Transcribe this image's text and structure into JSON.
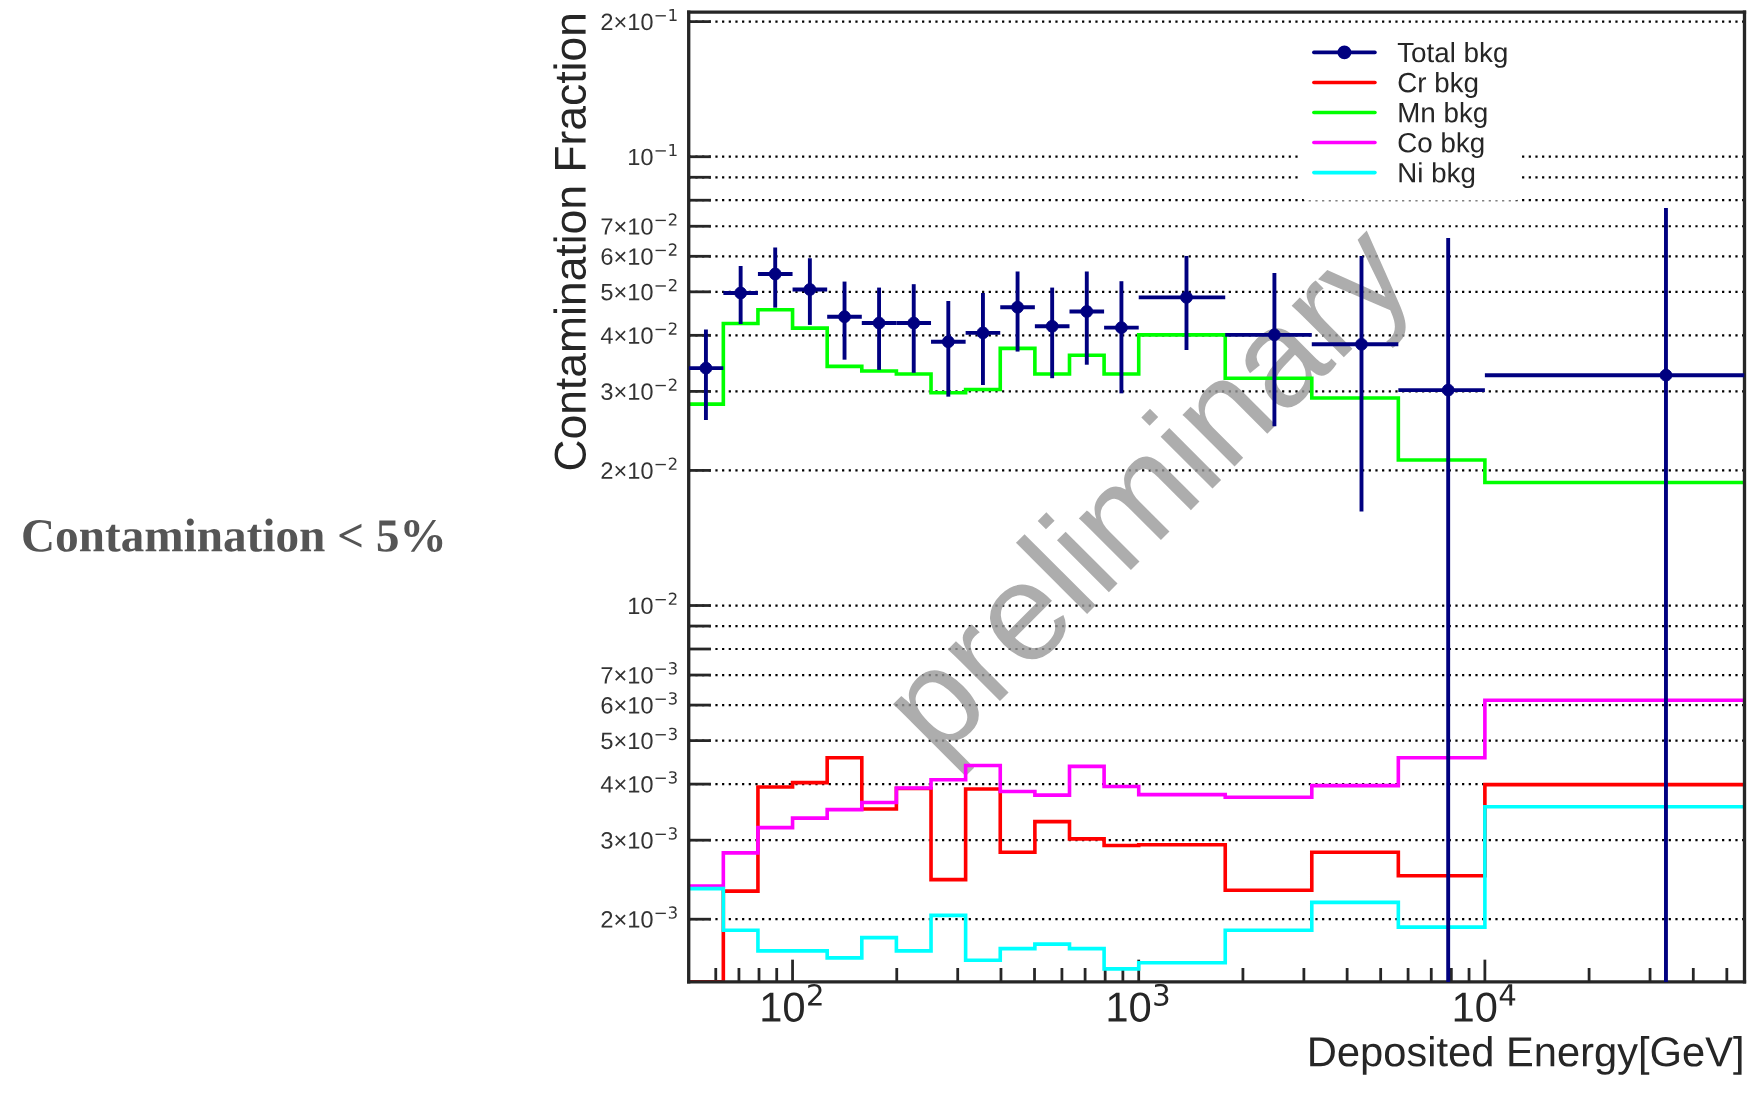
{
  "chart_data": {
    "type": "histogram",
    "xlabel": "Deposited Energy[GeV]",
    "ylabel": "Contamination Fraction",
    "annotations": [
      "Contamination < 5%",
      "preliminary"
    ],
    "bins": [
      50.12,
      63.1,
      79.43,
      100,
      125.9,
      158.5,
      199.5,
      251.2,
      316.2,
      398.1,
      501.2,
      631,
      794.3,
      1000,
      1778,
      3162,
      5623,
      10000,
      56234
    ],
    "series": [
      {
        "name": "Total bkg",
        "type": "scatter",
        "color": "#000080",
        "marker": "circle",
        "x": [
          56.2,
          70.8,
          89.1,
          112.2,
          141.3,
          177.8,
          223.9,
          281.8,
          354.8,
          446.7,
          562.3,
          707.9,
          891.3,
          1374,
          2466,
          4401,
          7834,
          33350
        ],
        "values": [
          0.0338,
          0.0497,
          0.0548,
          0.0506,
          0.044,
          0.0426,
          0.0426,
          0.0387,
          0.0405,
          0.0462,
          0.0419,
          0.0452,
          0.0416,
          0.0486,
          0.0401,
          0.0382,
          0.0302,
          0.0326
        ],
        "errors": [
          [
            0.0259,
            0.0412
          ],
          [
            0.0424,
            0.0571
          ],
          [
            0.0461,
            0.0628
          ],
          [
            0.0422,
            0.0594
          ],
          [
            0.0353,
            0.0527
          ],
          [
            0.0335,
            0.0511
          ],
          [
            0.033,
            0.052
          ],
          [
            0.0292,
            0.0477
          ],
          [
            0.031,
            0.0497
          ],
          [
            0.0368,
            0.0555
          ],
          [
            0.0321,
            0.0511
          ],
          [
            0.0344,
            0.0555
          ],
          [
            0.0297,
            0.0528
          ],
          [
            0.0371,
            0.0601
          ],
          [
            0.0251,
            0.0551
          ],
          [
            0.0162,
            0.0601
          ],
          [
            0.00145,
            0.0659
          ],
          [
            0.00145,
            0.0769
          ]
        ],
        "xerrors": [
          [
            50.12,
            63.1
          ],
          [
            63.1,
            79.43
          ],
          [
            79.43,
            100
          ],
          [
            100,
            125.9
          ],
          [
            125.9,
            158.5
          ],
          [
            158.5,
            199.5
          ],
          [
            199.5,
            251.2
          ],
          [
            251.2,
            316.2
          ],
          [
            316.2,
            398.1
          ],
          [
            398.1,
            501.2
          ],
          [
            501.2,
            631
          ],
          [
            631,
            794.3
          ],
          [
            794.3,
            1000
          ],
          [
            1000,
            1778
          ],
          [
            1778,
            3162
          ],
          [
            3162,
            5623
          ],
          [
            5623,
            10000
          ],
          [
            10000,
            56234
          ]
        ]
      },
      {
        "name": "Cr bkg",
        "color": "#ff0000",
        "values": [
          0.00145,
          0.00231,
          0.00394,
          0.00403,
          0.00458,
          0.00352,
          0.00391,
          0.00245,
          0.0039,
          0.00282,
          0.0033,
          0.00302,
          0.00292,
          0.00293,
          0.00232,
          0.00282,
          0.0025,
          0.00399
        ]
      },
      {
        "name": "Mn bkg",
        "color": "#00ff00",
        "values": [
          0.0281,
          0.0425,
          0.0456,
          0.0415,
          0.0341,
          0.0333,
          0.0328,
          0.0298,
          0.0303,
          0.0374,
          0.0328,
          0.0361,
          0.0328,
          0.0401,
          0.0321,
          0.029,
          0.0211,
          0.0188
        ]
      },
      {
        "name": "Co bkg",
        "color": "#ff00ff",
        "values": [
          0.00237,
          0.00281,
          0.0032,
          0.00336,
          0.00351,
          0.00364,
          0.00392,
          0.00409,
          0.0044,
          0.00385,
          0.00378,
          0.00438,
          0.00395,
          0.00379,
          0.00374,
          0.00397,
          0.00458,
          0.00615
        ]
      },
      {
        "name": "Ni bkg",
        "color": "#00ffff",
        "values": [
          0.00234,
          0.00189,
          0.0017,
          0.0017,
          0.00164,
          0.00182,
          0.0017,
          0.00204,
          0.00162,
          0.00172,
          0.00176,
          0.00172,
          0.00155,
          0.0016,
          0.00189,
          0.00218,
          0.00192,
          0.00356
        ]
      }
    ],
    "log": "xy",
    "xlim": [
      50.12,
      56234
    ],
    "ylim": [
      0.00145,
      0.21
    ],
    "xticks": [
      {
        "value": 60,
        "label": null
      },
      {
        "value": 70,
        "label": null
      },
      {
        "value": 80,
        "label": null
      },
      {
        "value": 90,
        "label": null
      },
      {
        "value": 100,
        "label": "10$^{2}$"
      },
      {
        "value": 200,
        "label": null
      },
      {
        "value": 300,
        "label": null
      },
      {
        "value": 400,
        "label": null
      },
      {
        "value": 500,
        "label": null
      },
      {
        "value": 600,
        "label": null
      },
      {
        "value": 700,
        "label": null
      },
      {
        "value": 800,
        "label": null
      },
      {
        "value": 900,
        "label": null
      },
      {
        "value": 1000,
        "label": "10$^{3}$"
      },
      {
        "value": 2000,
        "label": null
      },
      {
        "value": 3000,
        "label": null
      },
      {
        "value": 4000,
        "label": null
      },
      {
        "value": 5000,
        "label": null
      },
      {
        "value": 6000,
        "label": null
      },
      {
        "value": 7000,
        "label": null
      },
      {
        "value": 8000,
        "label": null
      },
      {
        "value": 9000,
        "label": null
      },
      {
        "value": 10000,
        "label": "10$^{4}$"
      },
      {
        "value": 20000,
        "label": null
      },
      {
        "value": 30000,
        "label": null
      },
      {
        "value": 40000,
        "label": null
      },
      {
        "value": 50000,
        "label": null
      }
    ],
    "yticks": [
      {
        "value": 0.002,
        "label": "2×10$^{−3}$"
      },
      {
        "value": 0.003,
        "label": "3×10$^{−3}$"
      },
      {
        "value": 0.004,
        "label": "4×10$^{−3}$"
      },
      {
        "value": 0.005,
        "label": "5×10$^{−3}$"
      },
      {
        "value": 0.006,
        "label": "6×10$^{−3}$"
      },
      {
        "value": 0.007,
        "label": "7×10$^{−3}$"
      },
      {
        "value": 0.008,
        "label": null
      },
      {
        "value": 0.009,
        "label": null
      },
      {
        "value": 0.01,
        "label": "10$^{−2}$"
      },
      {
        "value": 0.02,
        "label": "2×10$^{−2}$"
      },
      {
        "value": 0.03,
        "label": "3×10$^{−2}$"
      },
      {
        "value": 0.04,
        "label": "4×10$^{−2}$"
      },
      {
        "value": 0.05,
        "label": "5×10$^{−2}$"
      },
      {
        "value": 0.06,
        "label": "6×10$^{−2}$"
      },
      {
        "value": 0.07,
        "label": "7×10$^{−2}$"
      },
      {
        "value": 0.08,
        "label": null
      },
      {
        "value": 0.09,
        "label": null
      },
      {
        "value": 0.1,
        "label": "10$^{−1}$"
      },
      {
        "value": 0.2,
        "label": "2×10$^{−1}$"
      }
    ],
    "grid": "y",
    "legend": "top right"
  }
}
